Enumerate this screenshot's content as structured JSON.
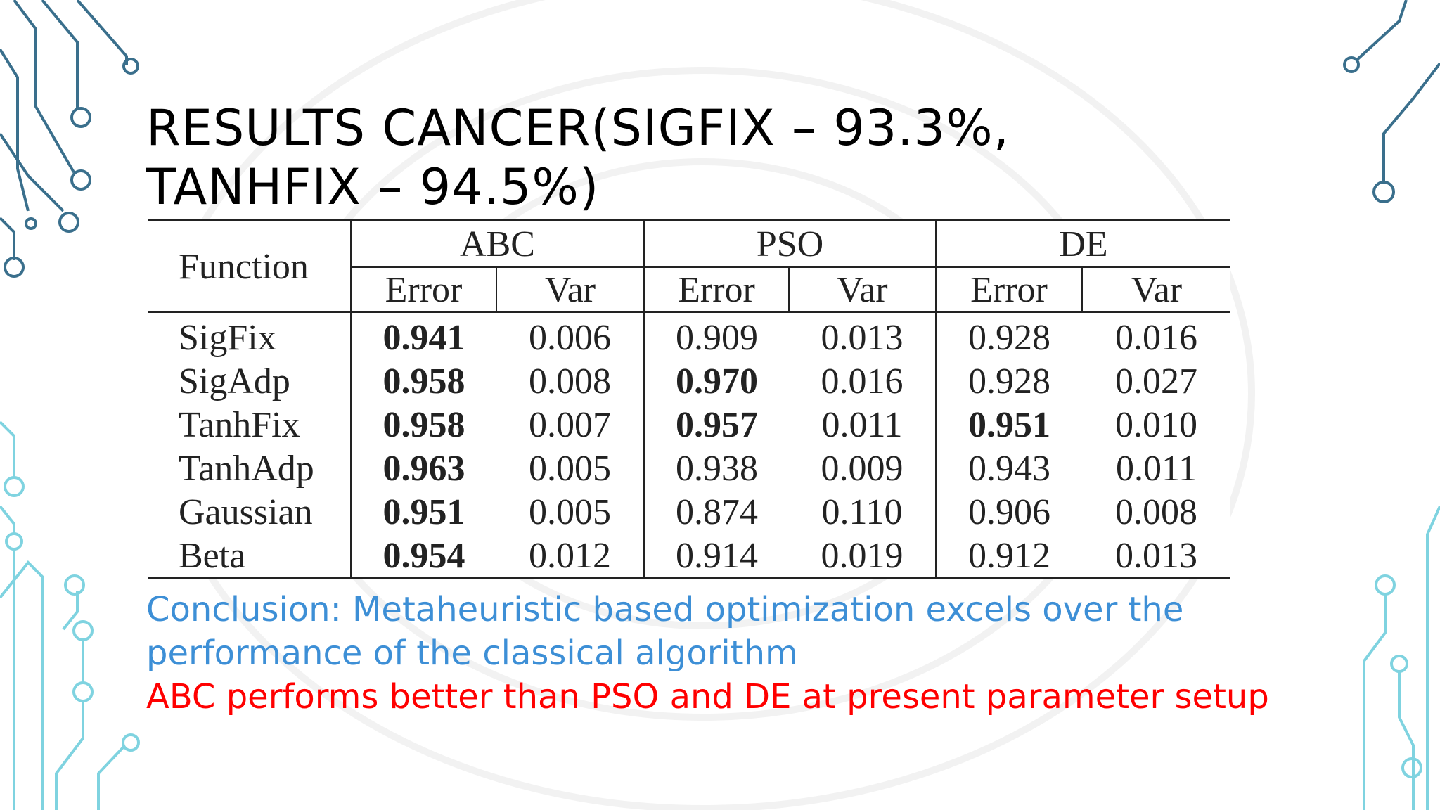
{
  "title": "Results Cancer(SigFix – 93.3%, TanhFix – 94.5%)",
  "table": {
    "function_header": "Function",
    "groups": [
      "ABC",
      "PSO",
      "DE"
    ],
    "subheaders": [
      "Error",
      "Var",
      "Error",
      "Var",
      "Error",
      "Var"
    ],
    "rows": [
      {
        "name": "SigFix",
        "values": [
          "0.941",
          "0.006",
          "0.909",
          "0.013",
          "0.928",
          "0.016"
        ],
        "bold": [
          true,
          false,
          false,
          false,
          false,
          false
        ]
      },
      {
        "name": "SigAdp",
        "values": [
          "0.958",
          "0.008",
          "0.970",
          "0.016",
          "0.928",
          "0.027"
        ],
        "bold": [
          true,
          false,
          true,
          false,
          false,
          false
        ]
      },
      {
        "name": "TanhFix",
        "values": [
          "0.958",
          "0.007",
          "0.957",
          "0.011",
          "0.951",
          "0.010"
        ],
        "bold": [
          true,
          false,
          true,
          false,
          true,
          false
        ]
      },
      {
        "name": "TanhAdp",
        "values": [
          "0.963",
          "0.005",
          "0.938",
          "0.009",
          "0.943",
          "0.011"
        ],
        "bold": [
          true,
          false,
          false,
          false,
          false,
          false
        ]
      },
      {
        "name": "Gaussian",
        "values": [
          "0.951",
          "0.005",
          "0.874",
          "0.110",
          "0.906",
          "0.008"
        ],
        "bold": [
          true,
          false,
          false,
          false,
          false,
          false
        ]
      },
      {
        "name": "Beta",
        "values": [
          "0.954",
          "0.012",
          "0.914",
          "0.019",
          "0.912",
          "0.013"
        ],
        "bold": [
          true,
          false,
          false,
          false,
          false,
          false
        ]
      }
    ]
  },
  "conclusion": "Conclusion: Metaheuristic based optimization excels over the performance of the classical algorithm",
  "finding": "ABC performs better than PSO and DE at present parameter setup",
  "colors": {
    "conclusion": "#3d8fd6",
    "finding": "#ff0000",
    "circuit_dark": "#3a6f8c",
    "circuit_light": "#7fd3e0"
  }
}
